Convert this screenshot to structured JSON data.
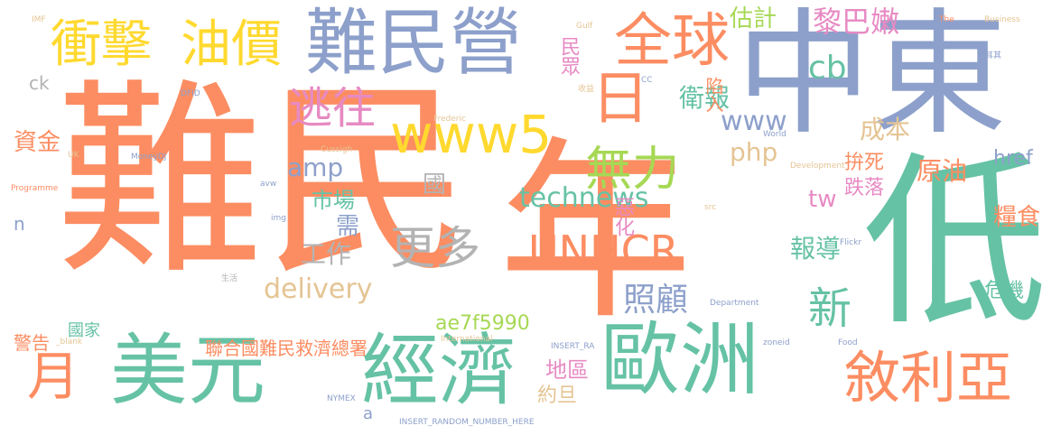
{
  "palette": {
    "orange": "#fc8d62",
    "teal": "#66c2a5",
    "blue": "#8da0cb",
    "pink": "#e78ac3",
    "green": "#a6d854",
    "yellow": "#ffd92f",
    "tan": "#e5c494",
    "gray": "#b3b3b3"
  },
  "words": [
    "難民",
    "年",
    "中東",
    "低",
    "難民營",
    "經濟",
    "歐洲",
    "美元",
    "衝擊",
    "油價",
    "全球",
    "敘利亞",
    "日",
    "UNHCR",
    "無力",
    "www5",
    "月",
    "更多",
    "逃往",
    "新",
    "資金",
    "估計",
    "黎巴嫩",
    "衛報",
    "cb",
    "照顧",
    "technews",
    "delivery",
    "工作",
    "php",
    "www",
    "amp",
    "國",
    "市場",
    "需",
    "原油",
    "成本",
    "糧食",
    "報導",
    "危機",
    "地區",
    "約旦",
    "聯合國難民救濟總署",
    "國家",
    "警告",
    "拚死",
    "跌落",
    "陷入",
    "惡化",
    "民眾",
    "tw",
    "href",
    "ae7f5990",
    "ck",
    "n",
    "a",
    "IMF",
    "The",
    "Business",
    "Programme",
    "Department",
    "International",
    "Development",
    "INSERT_RANDOM_NUMBER_HERE",
    "INSERT_RA",
    "Food",
    "zoneid",
    "_blank",
    "NYMEX",
    "MoneyDJ",
    "Frederic",
    "Cussigh",
    "World",
    "Flickr",
    "target",
    "DFID",
    "UK",
    "img",
    "src",
    "avw",
    "CC",
    "Gulf",
    "伊拉克",
    "土耳其",
    "收益",
    "生活"
  ]
}
